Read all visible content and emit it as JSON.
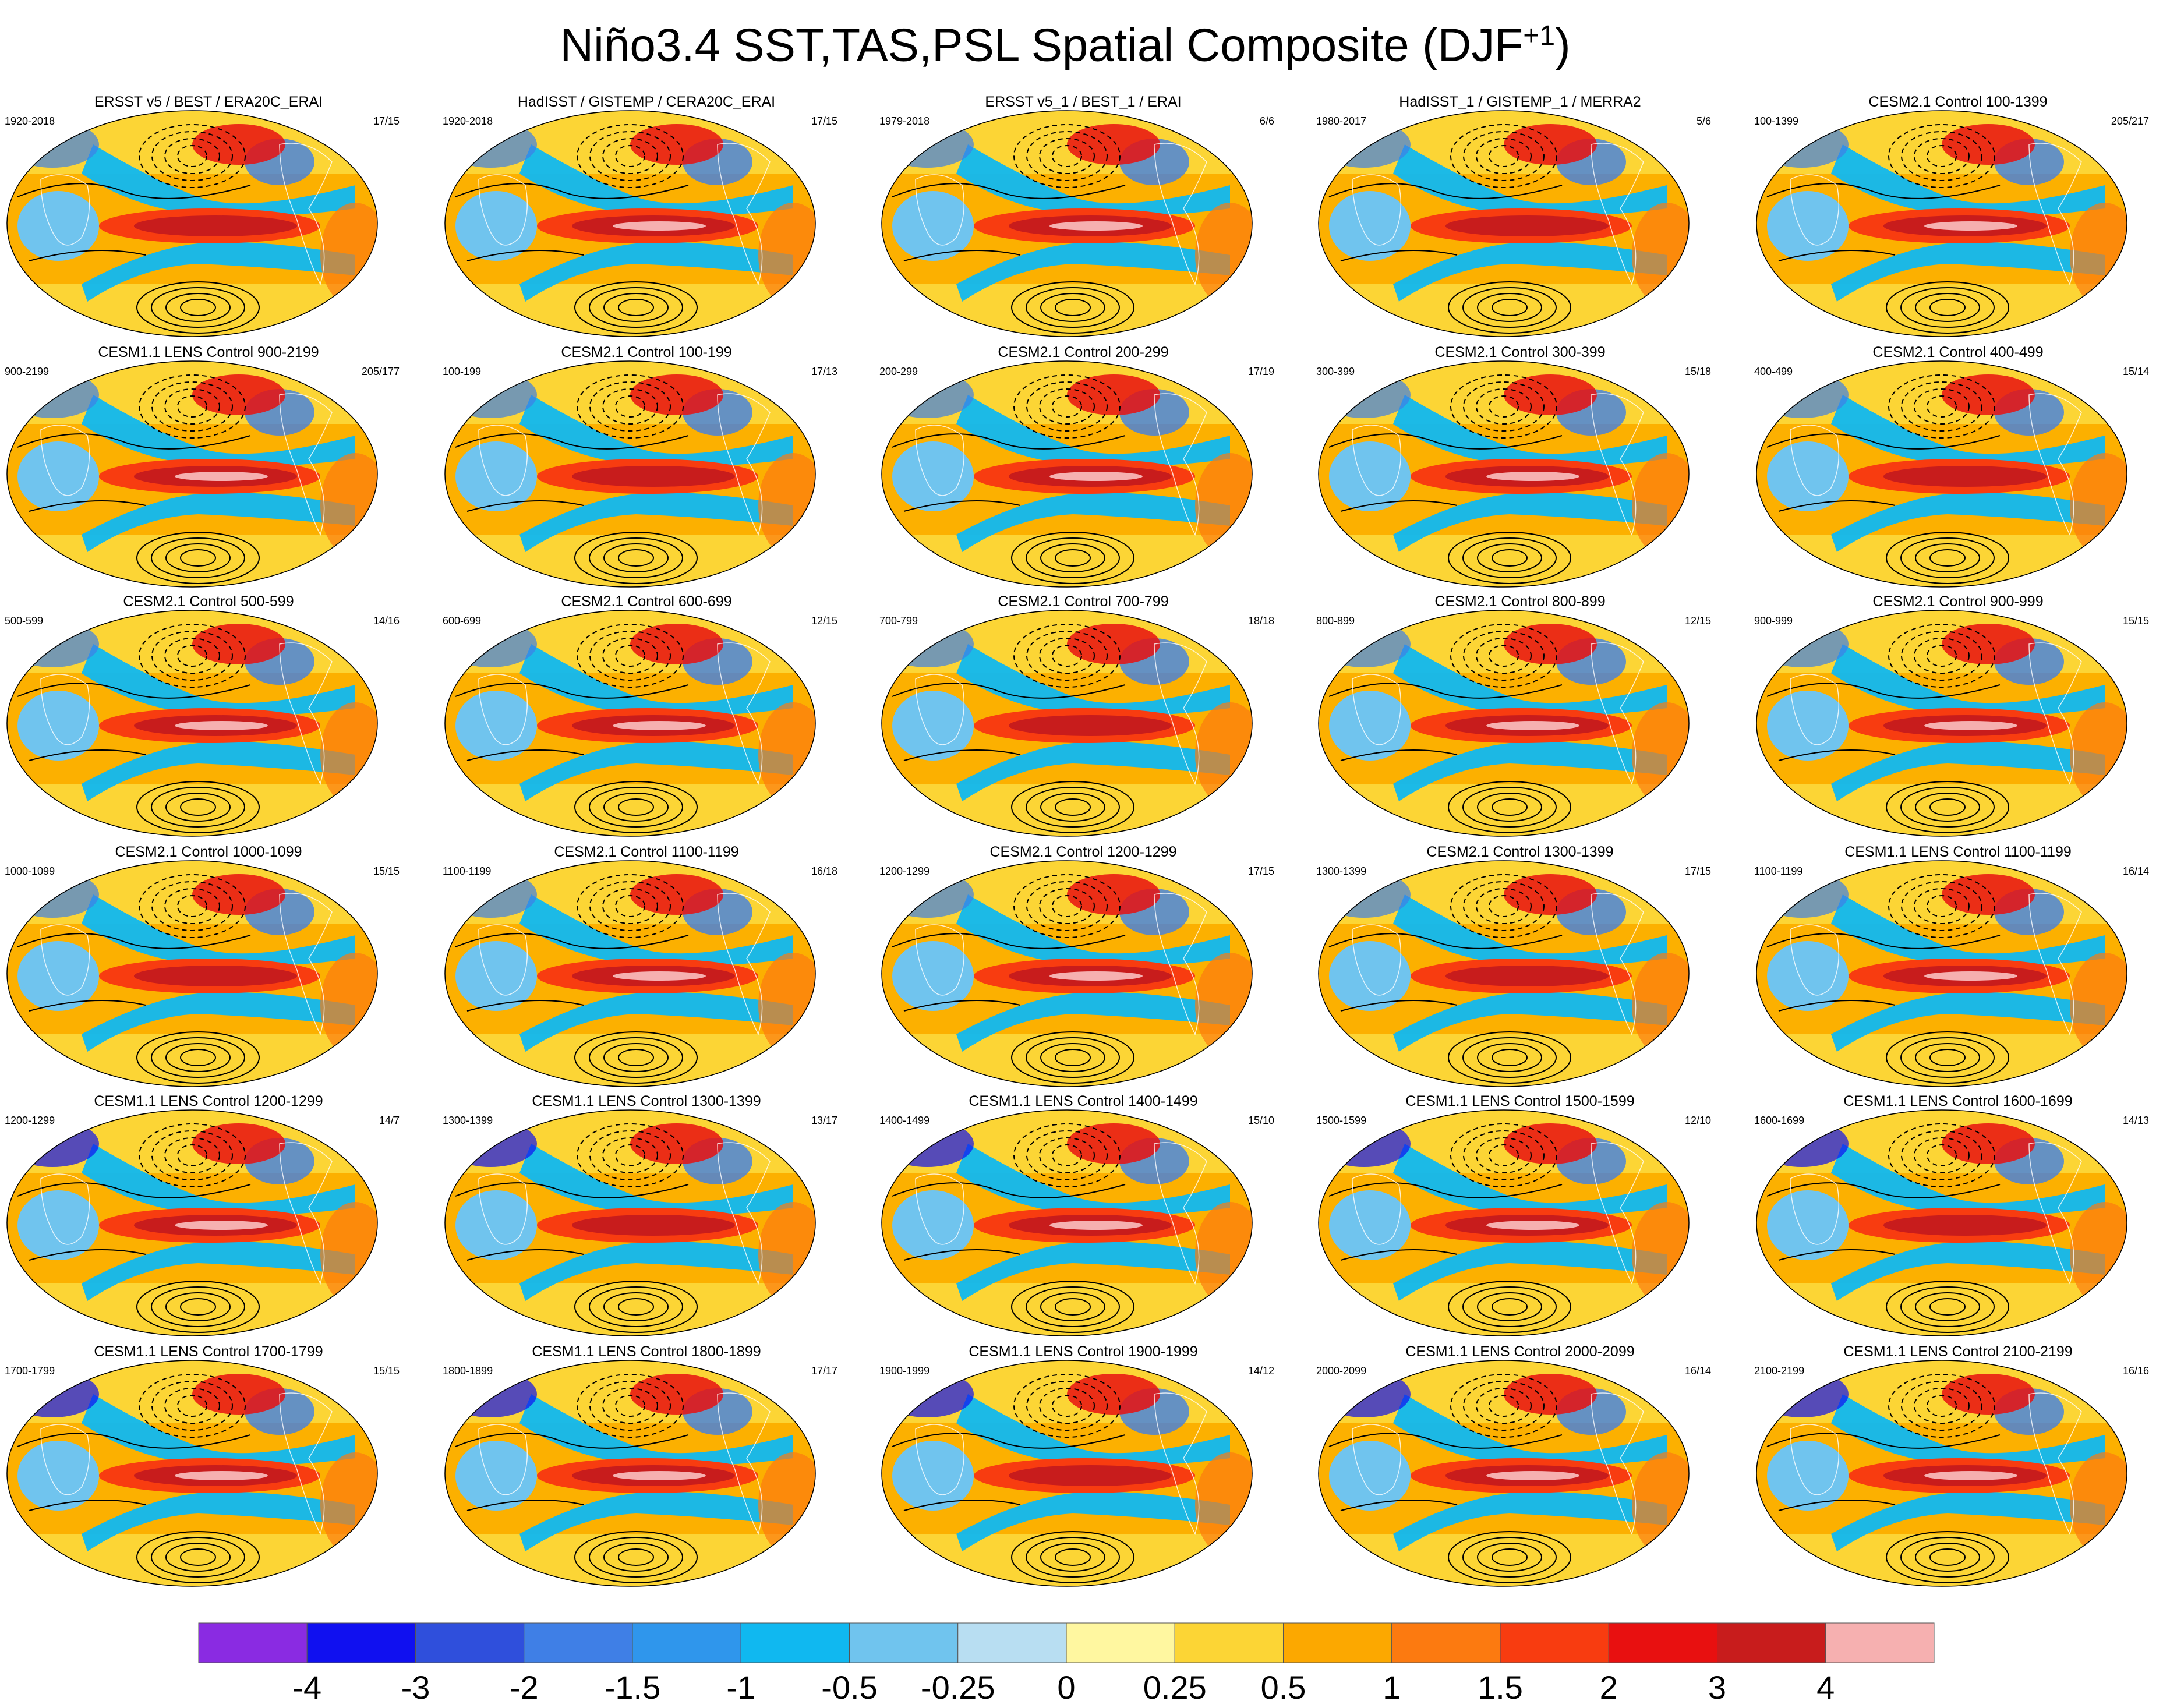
{
  "title": {
    "main": "Niño3.4 SST,TAS,PSL Spatial Composite (DJF",
    "superscript": "+1",
    "close": ")"
  },
  "panels": [
    {
      "title": "ERSST v5 / BEST / ERA20C_ERAI",
      "period": "1920-2018",
      "count": "17/15"
    },
    {
      "title": "HadISST / GISTEMP / CERA20C_ERAI",
      "period": "1920-2018",
      "count": "17/15"
    },
    {
      "title": "ERSST v5_1 / BEST_1 / ERAI",
      "period": "1979-2018",
      "count": "6/6"
    },
    {
      "title": "HadISST_1 / GISTEMP_1 / MERRA2",
      "period": "1980-2017",
      "count": "5/6"
    },
    {
      "title": "CESM2.1 Control 100-1399",
      "period": "100-1399",
      "count": "205/217"
    },
    {
      "title": "CESM1.1 LENS Control 900-2199",
      "period": "900-2199",
      "count": "205/177"
    },
    {
      "title": "CESM2.1 Control 100-199",
      "period": "100-199",
      "count": "17/13"
    },
    {
      "title": "CESM2.1 Control 200-299",
      "period": "200-299",
      "count": "17/19"
    },
    {
      "title": "CESM2.1 Control 300-399",
      "period": "300-399",
      "count": "15/18"
    },
    {
      "title": "CESM2.1 Control 400-499",
      "period": "400-499",
      "count": "15/14"
    },
    {
      "title": "CESM2.1 Control 500-599",
      "period": "500-599",
      "count": "14/16"
    },
    {
      "title": "CESM2.1 Control 600-699",
      "period": "600-699",
      "count": "12/15"
    },
    {
      "title": "CESM2.1 Control 700-799",
      "period": "700-799",
      "count": "18/18"
    },
    {
      "title": "CESM2.1 Control 800-899",
      "period": "800-899",
      "count": "12/15"
    },
    {
      "title": "CESM2.1 Control 900-999",
      "period": "900-999",
      "count": "15/15"
    },
    {
      "title": "CESM2.1 Control 1000-1099",
      "period": "1000-1099",
      "count": "15/15"
    },
    {
      "title": "CESM2.1 Control 1100-1199",
      "period": "1100-1199",
      "count": "16/18"
    },
    {
      "title": "CESM2.1 Control 1200-1299",
      "period": "1200-1299",
      "count": "17/15"
    },
    {
      "title": "CESM2.1 Control 1300-1399",
      "period": "1300-1399",
      "count": "17/15"
    },
    {
      "title": "CESM1.1 LENS Control 1100-1199",
      "period": "1100-1199",
      "count": "16/14"
    },
    {
      "title": "CESM1.1 LENS Control 1200-1299",
      "period": "1200-1299",
      "count": "14/7"
    },
    {
      "title": "CESM1.1 LENS Control 1300-1399",
      "period": "1300-1399",
      "count": "13/17"
    },
    {
      "title": "CESM1.1 LENS Control 1400-1499",
      "period": "1400-1499",
      "count": "15/10"
    },
    {
      "title": "CESM1.1 LENS Control 1500-1599",
      "period": "1500-1599",
      "count": "12/10"
    },
    {
      "title": "CESM1.1 LENS Control 1600-1699",
      "period": "1600-1699",
      "count": "14/13"
    },
    {
      "title": "CESM1.1 LENS Control 1700-1799",
      "period": "1700-1799",
      "count": "15/15"
    },
    {
      "title": "CESM1.1 LENS Control 1800-1899",
      "period": "1800-1899",
      "count": "17/17"
    },
    {
      "title": "CESM1.1 LENS Control 1900-1999",
      "period": "1900-1999",
      "count": "14/12"
    },
    {
      "title": "CESM1.1 LENS Control 2000-2099",
      "period": "2000-2099",
      "count": "16/14"
    },
    {
      "title": "CESM1.1 LENS Control 2100-2199",
      "period": "2100-2199",
      "count": "16/16"
    }
  ],
  "colorbar": {
    "colors": [
      "#8a2be2",
      "#1010f0",
      "#2f4fdc",
      "#3f7fe6",
      "#2f96ec",
      "#10b8f0",
      "#70c4ee",
      "#b8def2",
      "#fff7a0",
      "#fcd535",
      "#fca800",
      "#fc7a10",
      "#f83c10",
      "#e81010",
      "#c81c1c",
      "#f6b0b0"
    ],
    "labels": [
      "-4",
      "-3",
      "-2",
      "-1.5",
      "-1",
      "-0.5",
      "-0.25",
      "0",
      "0.25",
      "0.5",
      "1",
      "1.5",
      "2",
      "3",
      "4"
    ]
  }
}
